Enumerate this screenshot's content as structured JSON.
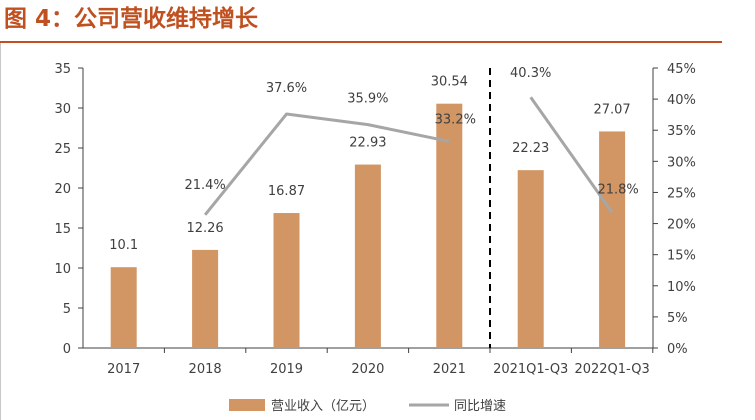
{
  "figure": {
    "title": "图 4：公司营收维持增长"
  },
  "colors": {
    "title": "#c0501f",
    "bar": "#d29564",
    "line": "#a6a6a6",
    "axis": "#404040",
    "divider": "#000000"
  },
  "chart_data": {
    "type": "bar",
    "categories": [
      "2017",
      "2018",
      "2019",
      "2020",
      "2021",
      "2021Q1-Q3",
      "2022Q1-Q3"
    ],
    "series": [
      {
        "name": "营业收入（亿元）",
        "type": "bar",
        "axis": "left",
        "values": [
          10.1,
          12.26,
          16.87,
          22.93,
          30.54,
          22.23,
          27.07
        ],
        "labels": [
          "10.1",
          "12.26",
          "16.87",
          "22.93",
          "30.54",
          "22.23",
          "27.07"
        ]
      },
      {
        "name": "同比增速",
        "type": "line",
        "axis": "right",
        "segments": [
          {
            "categories": [
              "2018",
              "2019",
              "2020",
              "2021"
            ],
            "values": [
              21.4,
              37.6,
              35.9,
              33.2
            ],
            "labels": [
              "21.4%",
              "37.6%",
              "35.9%",
              "33.2%"
            ]
          },
          {
            "categories": [
              "2021Q1-Q3",
              "2022Q1-Q3"
            ],
            "values": [
              40.3,
              21.8
            ],
            "labels": [
              "40.3%",
              "21.8%"
            ]
          }
        ]
      }
    ],
    "y_left": {
      "ylim": [
        0,
        35
      ],
      "ticks": [
        "0",
        "5",
        "10",
        "15",
        "20",
        "25",
        "30",
        "35"
      ]
    },
    "y_right": {
      "ylim": [
        0,
        45
      ],
      "ticks": [
        "0%",
        "5%",
        "10%",
        "15%",
        "20%",
        "25%",
        "30%",
        "35%",
        "40%",
        "45%"
      ]
    },
    "divider_after": "2021",
    "legend": {
      "position": "bottom",
      "items": [
        "营业收入（亿元）",
        "同比增速"
      ]
    },
    "grid": false
  }
}
